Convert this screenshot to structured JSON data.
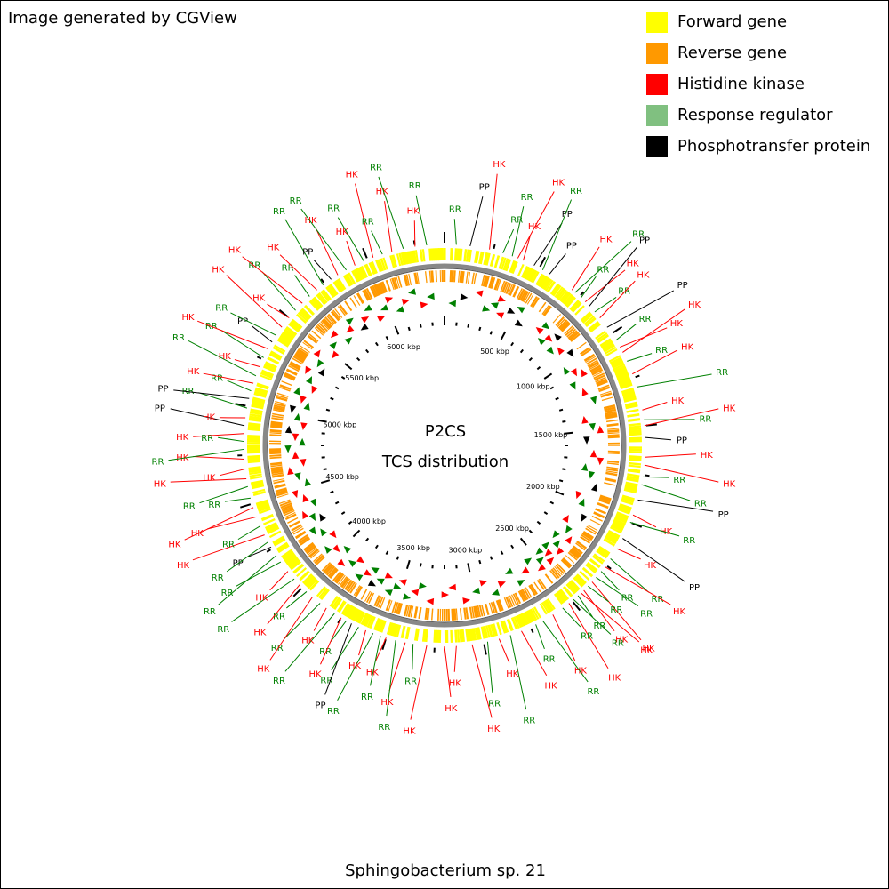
{
  "credit": "Image generated by CGView",
  "legend": [
    {
      "label": "Forward gene",
      "color": "#ffff00"
    },
    {
      "label": "Reverse gene",
      "color": "#ff9900"
    },
    {
      "label": "Histidine kinase",
      "color": "#ff0000"
    },
    {
      "label": "Response regulator",
      "color": "#80c080"
    },
    {
      "label": "Phosphotransfer protein",
      "color": "#000000"
    }
  ],
  "map": {
    "title": "P2CS",
    "subtitle": "TCS distribution",
    "organism": "Sphingobacterium sp. 21",
    "genome_length_kbp": 6400,
    "tick_labels": [
      "500 kbp",
      "1000 kbp",
      "1500 kbp",
      "2000 kbp",
      "2500 kbp",
      "3000 kbp",
      "3500 kbp",
      "4000 kbp",
      "4500 kbp",
      "5000 kbp",
      "5500 kbp",
      "6000 kbp"
    ],
    "feature_labels": {
      "HK": {
        "text": "HK",
        "color": "#ff0000"
      },
      "RR": {
        "text": "RR",
        "color": "#008000"
      },
      "PP": {
        "text": "PP",
        "color": "#000000"
      }
    },
    "features": [
      {
        "type": "RR",
        "kbp": 60
      },
      {
        "type": "PP",
        "kbp": 130
      },
      {
        "type": "HK",
        "kbp": 230
      },
      {
        "type": "RR",
        "kbp": 300
      },
      {
        "type": "RR",
        "kbp": 350
      },
      {
        "type": "HK",
        "kbp": 380
      },
      {
        "type": "HK",
        "kbp": 410
      },
      {
        "type": "PP",
        "kbp": 470
      },
      {
        "type": "RR",
        "kbp": 520
      },
      {
        "type": "PP",
        "kbp": 560
      },
      {
        "type": "HK",
        "kbp": 700
      },
      {
        "type": "RR",
        "kbp": 720
      },
      {
        "type": "RR",
        "kbp": 760
      },
      {
        "type": "HK",
        "kbp": 790
      },
      {
        "type": "PP",
        "kbp": 820
      },
      {
        "type": "RR",
        "kbp": 860
      },
      {
        "type": "HK",
        "kbp": 900
      },
      {
        "type": "PP",
        "kbp": 960
      },
      {
        "type": "RR",
        "kbp": 1040
      },
      {
        "type": "HK",
        "kbp": 1080
      },
      {
        "type": "HK",
        "kbp": 1110
      },
      {
        "type": "RR",
        "kbp": 1160
      },
      {
        "type": "HK",
        "kbp": 1230
      },
      {
        "type": "RR",
        "kbp": 1300
      },
      {
        "type": "HK",
        "kbp": 1420
      },
      {
        "type": "RR",
        "kbp": 1470
      },
      {
        "type": "HK",
        "kbp": 1500
      },
      {
        "type": "PP",
        "kbp": 1560
      },
      {
        "type": "HK",
        "kbp": 1660
      },
      {
        "type": "HK",
        "kbp": 1700
      },
      {
        "type": "RR",
        "kbp": 1760
      },
      {
        "type": "RR",
        "kbp": 1800
      },
      {
        "type": "PP",
        "kbp": 1880
      },
      {
        "type": "HK",
        "kbp": 1960
      },
      {
        "type": "RR",
        "kbp": 2000
      },
      {
        "type": "PP",
        "kbp": 2090
      },
      {
        "type": "HK",
        "kbp": 2150
      },
      {
        "type": "RR",
        "kbp": 2210
      },
      {
        "type": "HK",
        "kbp": 2260
      },
      {
        "type": "RR",
        "kbp": 2290
      },
      {
        "type": "RR",
        "kbp": 2330
      },
      {
        "type": "HK",
        "kbp": 2360
      },
      {
        "type": "RR",
        "kbp": 2390
      },
      {
        "type": "HK",
        "kbp": 2420
      },
      {
        "type": "HK",
        "kbp": 2440
      },
      {
        "type": "RR",
        "kbp": 2460
      },
      {
        "type": "RR",
        "kbp": 2490
      },
      {
        "type": "HK",
        "kbp": 2520
      },
      {
        "type": "RR",
        "kbp": 2560
      },
      {
        "type": "HK",
        "kbp": 2620
      },
      {
        "type": "RR",
        "kbp": 2680
      },
      {
        "type": "RR",
        "kbp": 2720
      },
      {
        "type": "HK",
        "kbp": 2800
      },
      {
        "type": "RR",
        "kbp": 2860
      },
      {
        "type": "HK",
        "kbp": 2920
      },
      {
        "type": "RR",
        "kbp": 2980
      },
      {
        "type": "HK",
        "kbp": 3060
      },
      {
        "type": "HK",
        "kbp": 3140
      },
      {
        "type": "HK",
        "kbp": 3200
      },
      {
        "type": "HK",
        "kbp": 3290
      },
      {
        "type": "RR",
        "kbp": 3360
      },
      {
        "type": "HK",
        "kbp": 3400
      },
      {
        "type": "RR",
        "kbp": 3450
      },
      {
        "type": "HK",
        "kbp": 3500
      },
      {
        "type": "RR",
        "kbp": 3530
      },
      {
        "type": "RR",
        "kbp": 3570
      },
      {
        "type": "HK",
        "kbp": 3610
      },
      {
        "type": "RR",
        "kbp": 3650
      },
      {
        "type": "PP",
        "kbp": 3690
      },
      {
        "type": "RR",
        "kbp": 3720
      },
      {
        "type": "HK",
        "kbp": 3750
      },
      {
        "type": "RR",
        "kbp": 3790
      },
      {
        "type": "HK",
        "kbp": 3840
      },
      {
        "type": "RR",
        "kbp": 3880
      },
      {
        "type": "HK",
        "kbp": 3930
      },
      {
        "type": "RR",
        "kbp": 3970
      },
      {
        "type": "HK",
        "kbp": 4020
      },
      {
        "type": "RR",
        "kbp": 4060
      },
      {
        "type": "HK",
        "kbp": 4110
      },
      {
        "type": "RR",
        "kbp": 4170
      },
      {
        "type": "RR",
        "kbp": 4210
      },
      {
        "type": "PP",
        "kbp": 4260
      },
      {
        "type": "RR",
        "kbp": 4290
      },
      {
        "type": "HK",
        "kbp": 4330
      },
      {
        "type": "RR",
        "kbp": 4380
      },
      {
        "type": "HK",
        "kbp": 4430
      },
      {
        "type": "HK",
        "kbp": 4480
      },
      {
        "type": "RR",
        "kbp": 4530
      },
      {
        "type": "RR",
        "kbp": 4590
      },
      {
        "type": "HK",
        "kbp": 4630
      },
      {
        "type": "HK",
        "kbp": 4680
      },
      {
        "type": "HK",
        "kbp": 4730
      },
      {
        "type": "RR",
        "kbp": 4780
      },
      {
        "type": "RR",
        "kbp": 4820
      },
      {
        "type": "HK",
        "kbp": 4860
      },
      {
        "type": "PP",
        "kbp": 4900
      },
      {
        "type": "HK",
        "kbp": 4940
      },
      {
        "type": "RR",
        "kbp": 4990
      },
      {
        "type": "PP",
        "kbp": 5040
      },
      {
        "type": "RR",
        "kbp": 5080
      },
      {
        "type": "HK",
        "kbp": 5120
      },
      {
        "type": "RR",
        "kbp": 5160
      },
      {
        "type": "HK",
        "kbp": 5210
      },
      {
        "type": "RR",
        "kbp": 5260
      },
      {
        "type": "HK",
        "kbp": 5310
      },
      {
        "type": "PP",
        "kbp": 5350
      },
      {
        "type": "RR",
        "kbp": 5390
      },
      {
        "type": "HK",
        "kbp": 5440
      },
      {
        "type": "HK",
        "kbp": 5500
      },
      {
        "type": "RR",
        "kbp": 5550
      },
      {
        "type": "HK",
        "kbp": 5600
      },
      {
        "type": "RR",
        "kbp": 5650
      },
      {
        "type": "HK",
        "kbp": 5700
      },
      {
        "type": "RR",
        "kbp": 5740
      },
      {
        "type": "PP",
        "kbp": 5790
      },
      {
        "type": "HK",
        "kbp": 5830
      },
      {
        "type": "RR",
        "kbp": 5880
      },
      {
        "type": "HK",
        "kbp": 5930
      },
      {
        "type": "RR",
        "kbp": 5980
      },
      {
        "type": "HK",
        "kbp": 6030
      },
      {
        "type": "RR",
        "kbp": 6080
      },
      {
        "type": "HK",
        "kbp": 6130
      },
      {
        "type": "RR",
        "kbp": 6190
      },
      {
        "type": "HK",
        "kbp": 6250
      },
      {
        "type": "RR",
        "kbp": 6310
      }
    ]
  }
}
